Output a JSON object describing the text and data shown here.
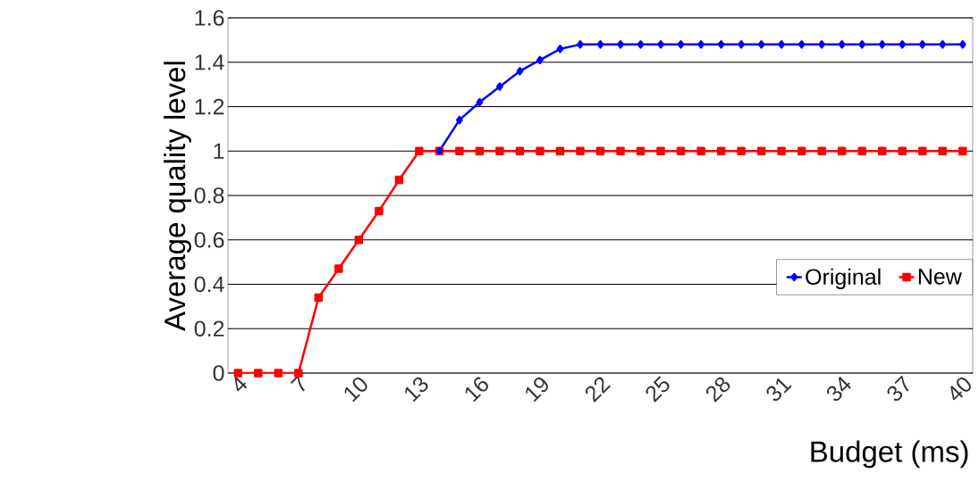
{
  "chart_data": {
    "type": "line",
    "xlabel": "Budget (ms)",
    "ylabel": "Average quality level",
    "categories": [
      "4",
      null,
      null,
      "7",
      null,
      null,
      "10",
      null,
      null,
      "13",
      null,
      null,
      "16",
      null,
      null,
      "19",
      null,
      null,
      "22",
      null,
      null,
      "25",
      null,
      null,
      "28",
      null,
      null,
      "31",
      null,
      null,
      "34",
      null,
      null,
      "37",
      null,
      null,
      "40"
    ],
    "series": [
      {
        "name": "Original",
        "color": "#0000ff",
        "marker": "diamond",
        "values": [
          null,
          null,
          null,
          null,
          null,
          null,
          null,
          null,
          null,
          null,
          1.0,
          1.14,
          1.22,
          1.29,
          1.36,
          1.41,
          1.46,
          1.48,
          1.48,
          1.48,
          1.48,
          1.48,
          1.48,
          1.48,
          1.48,
          1.48,
          1.48,
          1.48,
          1.48,
          1.48,
          1.48,
          1.48,
          1.48,
          1.48,
          1.48,
          1.48,
          1.48
        ]
      },
      {
        "name": "New",
        "color": "#ff0000",
        "marker": "square",
        "values": [
          0,
          0,
          0,
          0,
          0.34,
          0.47,
          0.6,
          0.73,
          0.87,
          1.0,
          1.0,
          1.0,
          1.0,
          1.0,
          1.0,
          1.0,
          1.0,
          1.0,
          1.0,
          1.0,
          1.0,
          1.0,
          1.0,
          1.0,
          1.0,
          1.0,
          1.0,
          1.0,
          1.0,
          1.0,
          1.0,
          1.0,
          1.0,
          1.0,
          1.0,
          1.0,
          1.0
        ]
      }
    ],
    "ylim": [
      0,
      1.6
    ],
    "yticks": [
      0,
      0.2,
      0.4,
      0.6,
      0.8,
      1,
      1.2,
      1.4,
      1.6
    ],
    "grid": "y",
    "legend": "right"
  }
}
